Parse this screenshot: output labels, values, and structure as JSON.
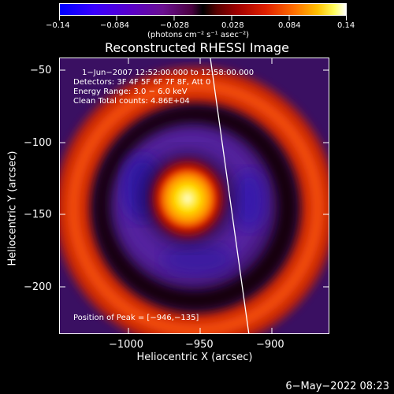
{
  "colorbar": {
    "tick_labels": [
      "−0.14",
      "−0.084",
      "−0.028",
      "0.028",
      "0.084",
      "0.14"
    ],
    "units": "(photons cm⁻² s⁻¹ asec⁻²)"
  },
  "plot": {
    "title": "Reconstructed RHESSI Image",
    "xlabel": "Heliocentric X (arcsec)",
    "ylabel": "Heliocentric Y (arcsec)",
    "x_ticks": [
      "−1000",
      "−950",
      "−900"
    ],
    "y_ticks": [
      "−50",
      "−100",
      "−150",
      "−200"
    ],
    "info_lines": [
      "1−Jun−2007 12:52:00.000 to 12:58:00.000",
      "Detectors: 3F 4F 5F 6F 7F 8F, Att 0",
      "Energy Range: 3.0 − 6.0 keV",
      "Clean    Total counts: 4.86E+04"
    ],
    "peak_text": "Position of Peak = [−946,−135]"
  },
  "footer": {
    "timestamp": "6−May−2022 08:23"
  },
  "colors": {
    "background": "#000000",
    "foreground": "#ffffff"
  }
}
